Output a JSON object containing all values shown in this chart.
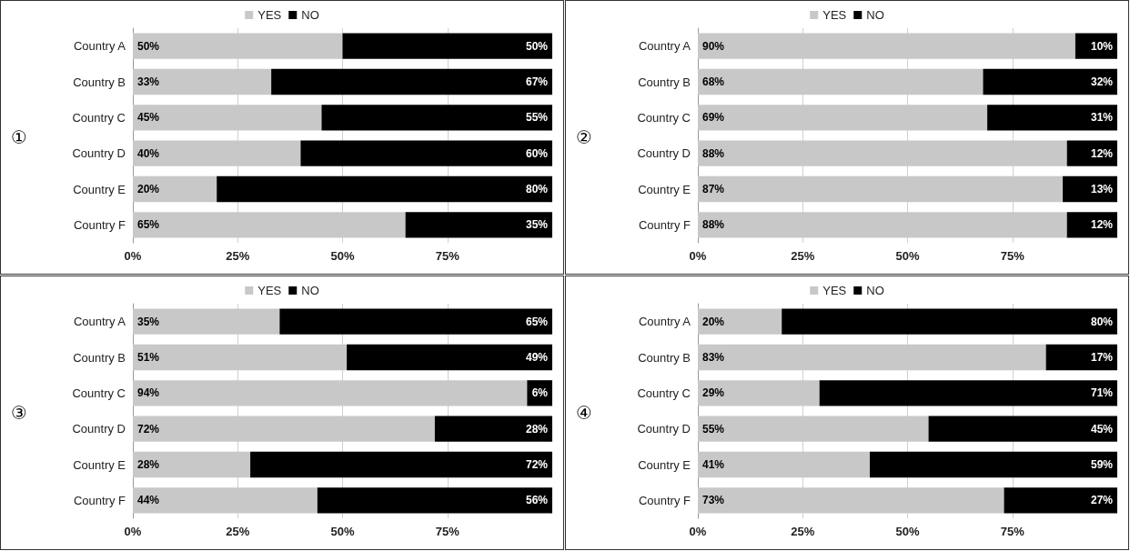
{
  "chart_data": [
    {
      "type": "bar",
      "title": "①",
      "orientation": "horizontal",
      "stacked": true,
      "legend": "top",
      "grid": "x",
      "categories": [
        "Country A",
        "Country B",
        "Country C",
        "Country D",
        "Country E",
        "Country F"
      ],
      "xlim": [
        0,
        100
      ],
      "xticks": [
        {
          "value": 0,
          "label": "0%"
        },
        {
          "value": 25,
          "label": "25%"
        },
        {
          "value": 50,
          "label": "50%"
        },
        {
          "value": 75,
          "label": "75%"
        }
      ],
      "series": [
        {
          "name": "YES",
          "color": "#c8c8c8",
          "values": [
            50,
            33,
            45,
            40,
            20,
            65
          ],
          "value_labels": [
            "50%",
            "33%",
            "45%",
            "40%",
            "20%",
            "65%"
          ]
        },
        {
          "name": "NO",
          "color": "#000000",
          "values": [
            50,
            67,
            55,
            60,
            80,
            35
          ],
          "value_labels": [
            "50%",
            "67%",
            "55%",
            "60%",
            "80%",
            "35%"
          ]
        }
      ]
    },
    {
      "type": "bar",
      "title": "②",
      "orientation": "horizontal",
      "stacked": true,
      "legend": "top",
      "grid": "x",
      "categories": [
        "Country A",
        "Country B",
        "Country C",
        "Country D",
        "Country E",
        "Country F"
      ],
      "xlim": [
        0,
        100
      ],
      "xticks": [
        {
          "value": 0,
          "label": "0%"
        },
        {
          "value": 25,
          "label": "25%"
        },
        {
          "value": 50,
          "label": "50%"
        },
        {
          "value": 75,
          "label": "75%"
        }
      ],
      "series": [
        {
          "name": "YES",
          "color": "#c8c8c8",
          "values": [
            90,
            68,
            69,
            88,
            87,
            88
          ],
          "value_labels": [
            "90%",
            "68%",
            "69%",
            "88%",
            "87%",
            "88%"
          ]
        },
        {
          "name": "NO",
          "color": "#000000",
          "values": [
            10,
            32,
            31,
            12,
            13,
            12
          ],
          "value_labels": [
            "10%",
            "32%",
            "31%",
            "12%",
            "13%",
            "12%"
          ]
        }
      ]
    },
    {
      "type": "bar",
      "title": "③",
      "orientation": "horizontal",
      "stacked": true,
      "legend": "top",
      "grid": "x",
      "categories": [
        "Country A",
        "Country B",
        "Country C",
        "Country D",
        "Country E",
        "Country F"
      ],
      "xlim": [
        0,
        100
      ],
      "xticks": [
        {
          "value": 0,
          "label": "0%"
        },
        {
          "value": 25,
          "label": "25%"
        },
        {
          "value": 50,
          "label": "50%"
        },
        {
          "value": 75,
          "label": "75%"
        }
      ],
      "series": [
        {
          "name": "YES",
          "color": "#c8c8c8",
          "values": [
            35,
            51,
            94,
            72,
            28,
            44
          ],
          "value_labels": [
            "35%",
            "51%",
            "94%",
            "72%",
            "28%",
            "44%"
          ]
        },
        {
          "name": "NO",
          "color": "#000000",
          "values": [
            65,
            49,
            6,
            28,
            72,
            56
          ],
          "value_labels": [
            "65%",
            "49%",
            "6%",
            "28%",
            "72%",
            "56%"
          ]
        }
      ]
    },
    {
      "type": "bar",
      "title": "④",
      "orientation": "horizontal",
      "stacked": true,
      "legend": "top",
      "grid": "x",
      "categories": [
        "Country A",
        "Country B",
        "Country C",
        "Country D",
        "Country E",
        "Country F"
      ],
      "xlim": [
        0,
        100
      ],
      "xticks": [
        {
          "value": 0,
          "label": "0%"
        },
        {
          "value": 25,
          "label": "25%"
        },
        {
          "value": 50,
          "label": "50%"
        },
        {
          "value": 75,
          "label": "75%"
        }
      ],
      "series": [
        {
          "name": "YES",
          "color": "#c8c8c8",
          "values": [
            20,
            83,
            29,
            55,
            41,
            73
          ],
          "value_labels": [
            "20%",
            "83%",
            "29%",
            "55%",
            "41%",
            "73%"
          ]
        },
        {
          "name": "NO",
          "color": "#000000",
          "values": [
            80,
            17,
            71,
            45,
            59,
            27
          ],
          "value_labels": [
            "80%",
            "17%",
            "71%",
            "45%",
            "59%",
            "27%"
          ]
        }
      ]
    }
  ]
}
